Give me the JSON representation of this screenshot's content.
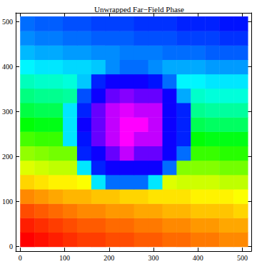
{
  "chart_data": {
    "type": "heatmap",
    "title": "Unwrapped Far−Field Phase",
    "xlim": [
      -10,
      520
    ],
    "ylim": [
      -10,
      520
    ],
    "xticks": [
      0,
      100,
      200,
      300,
      400,
      500
    ],
    "yticks": [
      0,
      100,
      200,
      300,
      400,
      500
    ],
    "zlim": [
      0,
      0.84
    ],
    "x": [
      16,
      48,
      80,
      112,
      144,
      176,
      208,
      240,
      272,
      304,
      336,
      368,
      400,
      432,
      464,
      496
    ],
    "y": [
      16,
      48,
      80,
      112,
      144,
      176,
      208,
      240,
      272,
      304,
      336,
      368,
      400,
      432,
      464,
      496
    ],
    "cells": [
      [
        0.0,
        0.01,
        0.02,
        0.03,
        0.04,
        0.04,
        0.05,
        0.05,
        0.06,
        0.06,
        0.07,
        0.07,
        0.08,
        0.08,
        0.09,
        0.09
      ],
      [
        0.02,
        0.03,
        0.04,
        0.05,
        0.06,
        0.06,
        0.07,
        0.07,
        0.08,
        0.08,
        0.09,
        0.09,
        0.1,
        0.1,
        0.11,
        0.11
      ],
      [
        0.05,
        0.06,
        0.07,
        0.08,
        0.09,
        0.09,
        0.1,
        0.1,
        0.11,
        0.11,
        0.12,
        0.12,
        0.13,
        0.13,
        0.13,
        0.14
      ],
      [
        0.09,
        0.1,
        0.11,
        0.12,
        0.12,
        0.13,
        0.13,
        0.14,
        0.14,
        0.15,
        0.15,
        0.15,
        0.16,
        0.16,
        0.16,
        0.17
      ],
      [
        0.14,
        0.15,
        0.16,
        0.16,
        0.17,
        0.52,
        0.6,
        0.6,
        0.6,
        0.52,
        0.19,
        0.2,
        0.2,
        0.2,
        0.21,
        0.21
      ],
      [
        0.19,
        0.2,
        0.21,
        0.21,
        0.52,
        0.65,
        0.68,
        0.68,
        0.68,
        0.68,
        0.6,
        0.25,
        0.25,
        0.25,
        0.26,
        0.26
      ],
      [
        0.24,
        0.25,
        0.26,
        0.26,
        0.65,
        0.68,
        0.74,
        0.8,
        0.74,
        0.74,
        0.68,
        0.6,
        0.3,
        0.3,
        0.31,
        0.31
      ],
      [
        0.29,
        0.3,
        0.3,
        0.52,
        0.66,
        0.74,
        0.8,
        0.84,
        0.8,
        0.8,
        0.68,
        0.65,
        0.34,
        0.35,
        0.35,
        0.35
      ],
      [
        0.34,
        0.35,
        0.35,
        0.52,
        0.68,
        0.74,
        0.8,
        0.84,
        0.84,
        0.8,
        0.68,
        0.65,
        0.39,
        0.4,
        0.4,
        0.4
      ],
      [
        0.38,
        0.39,
        0.39,
        0.52,
        0.65,
        0.74,
        0.8,
        0.82,
        0.8,
        0.8,
        0.68,
        0.65,
        0.43,
        0.44,
        0.44,
        0.44
      ],
      [
        0.42,
        0.43,
        0.43,
        0.44,
        0.62,
        0.68,
        0.74,
        0.76,
        0.74,
        0.74,
        0.68,
        0.56,
        0.47,
        0.48,
        0.48,
        0.48
      ],
      [
        0.46,
        0.47,
        0.47,
        0.48,
        0.54,
        0.65,
        0.68,
        0.68,
        0.68,
        0.66,
        0.6,
        0.51,
        0.51,
        0.52,
        0.52,
        0.52
      ],
      [
        0.51,
        0.52,
        0.52,
        0.53,
        0.53,
        0.54,
        0.58,
        0.6,
        0.6,
        0.58,
        0.56,
        0.56,
        0.56,
        0.57,
        0.57,
        0.57
      ],
      [
        0.55,
        0.56,
        0.56,
        0.57,
        0.57,
        0.58,
        0.58,
        0.59,
        0.59,
        0.59,
        0.6,
        0.6,
        0.6,
        0.61,
        0.61,
        0.61
      ],
      [
        0.58,
        0.59,
        0.59,
        0.6,
        0.6,
        0.61,
        0.61,
        0.61,
        0.62,
        0.62,
        0.62,
        0.63,
        0.63,
        0.63,
        0.64,
        0.64
      ],
      [
        0.6,
        0.61,
        0.61,
        0.62,
        0.62,
        0.63,
        0.63,
        0.63,
        0.64,
        0.64,
        0.64,
        0.65,
        0.65,
        0.65,
        0.66,
        0.66
      ]
    ]
  }
}
